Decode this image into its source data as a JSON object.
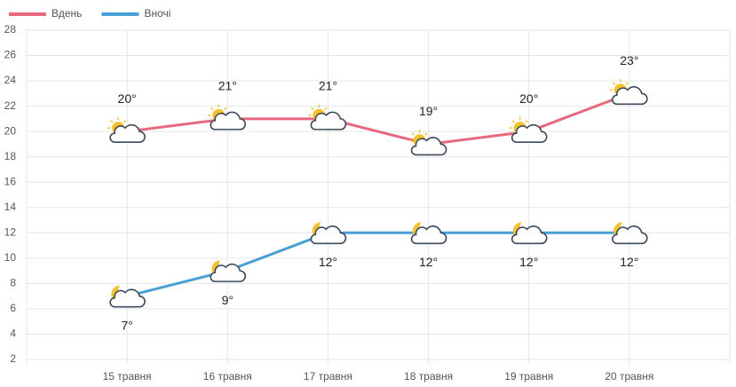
{
  "chart_data": {
    "type": "line",
    "categories": [
      "15 травня",
      "16 травня",
      "17 травня",
      "18 травня",
      "19 травня",
      "20 травня"
    ],
    "series": [
      {
        "name": "Вдень",
        "color": "#e8697f",
        "values": [
          20,
          21,
          21,
          19,
          20,
          23
        ],
        "value_labels": [
          "20°",
          "21°",
          "21°",
          "19°",
          "20°",
          "23°"
        ]
      },
      {
        "name": "Вночі",
        "color": "#4aa0d5",
        "values": [
          7,
          9,
          12,
          12,
          12,
          12
        ],
        "value_labels": [
          "7°",
          "9°",
          "12°",
          "12°",
          "12°",
          "12°"
        ]
      }
    ],
    "ylim": [
      2,
      28
    ],
    "yticks": [
      2,
      4,
      6,
      8,
      10,
      12,
      14,
      16,
      18,
      20,
      22,
      24,
      26,
      28
    ],
    "grid": true,
    "legend": "top-left"
  }
}
